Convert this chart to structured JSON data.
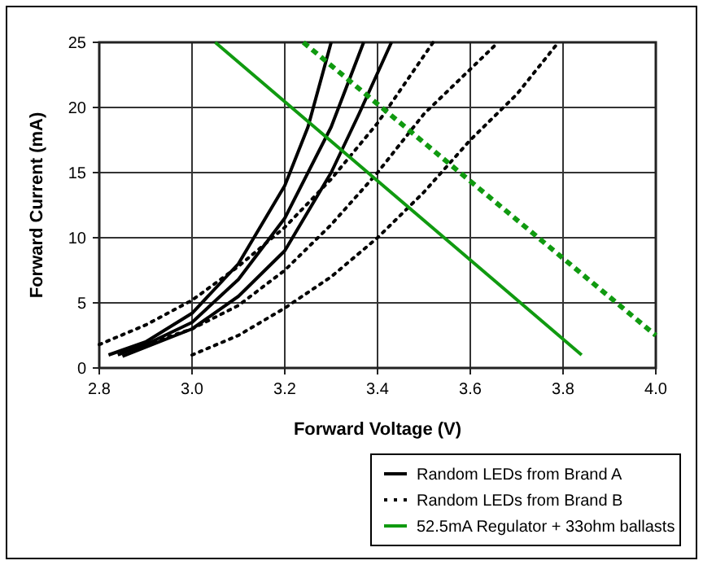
{
  "chart_data": {
    "type": "line",
    "xlabel": "Forward Voltage (V)",
    "ylabel": "Forward Current (mA)",
    "xlim": [
      2.8,
      4.0
    ],
    "xticks": [
      2.8,
      {
        "value": 3,
        "label": "3.0"
      },
      3.2,
      3.4,
      3.6,
      3.8,
      {
        "value": 4,
        "label": "4.0"
      }
    ],
    "ylim": [
      0,
      25
    ],
    "yticks": [
      0,
      5,
      10,
      15,
      20,
      25
    ],
    "grid": true,
    "legend": "bottom right",
    "marker": "none",
    "series": [
      {
        "name": "Random LEDs from Brand A",
        "color": "#000000",
        "line_style": "solid",
        "x": [
          2.82,
          2.9,
          3.0,
          3.1,
          3.2,
          3.25,
          3.3
        ],
        "values": [
          1,
          2,
          4.2,
          8,
          14,
          18.5,
          25
        ]
      },
      {
        "color": "#000000",
        "line_style": "solid",
        "x": [
          2.84,
          2.9,
          3.0,
          3.1,
          3.2,
          3.3,
          3.37
        ],
        "values": [
          1,
          1.8,
          3.5,
          6.8,
          11.5,
          18.5,
          25
        ]
      },
      {
        "color": "#000000",
        "line_style": "solid",
        "x": [
          2.85,
          3.0,
          3.1,
          3.2,
          3.3,
          3.36,
          3.43
        ],
        "values": [
          0.9,
          3,
          5.5,
          9,
          15,
          19.5,
          25
        ]
      },
      {
        "name": "Random LEDs from Brand B",
        "color": "#000000",
        "line_style": "dotted",
        "x": [
          2.8,
          2.9,
          3.0,
          3.1,
          3.2,
          3.3,
          3.4,
          3.52
        ],
        "values": [
          1.8,
          3.3,
          5.2,
          7.8,
          10.8,
          14.5,
          18.8,
          25
        ]
      },
      {
        "color": "#000000",
        "line_style": "dotted",
        "x": [
          2.85,
          3.0,
          3.1,
          3.2,
          3.3,
          3.4,
          3.5,
          3.66
        ],
        "values": [
          1.2,
          3,
          4.8,
          7.5,
          11,
          15,
          19.5,
          25
        ]
      },
      {
        "color": "#000000",
        "line_style": "dotted",
        "x": [
          3.0,
          3.1,
          3.2,
          3.3,
          3.4,
          3.5,
          3.6,
          3.7,
          3.79
        ],
        "values": [
          1,
          2.5,
          4.6,
          7,
          10,
          13.5,
          17.5,
          21,
          25
        ]
      },
      {
        "name": "52.5mA Regulator + 33ohm ballasts",
        "color": "#109a10",
        "line_style": "solid",
        "x": [
          3.05,
          3.84
        ],
        "values": [
          25,
          1
        ]
      },
      {
        "color": "#109a10",
        "line_style": "dashed",
        "x": [
          3.24,
          4.0
        ],
        "values": [
          25,
          2.5
        ]
      }
    ]
  }
}
